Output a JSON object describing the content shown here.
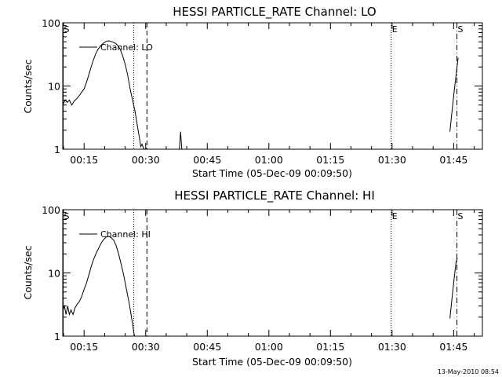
{
  "timestamp": "13-May-2010 08:54",
  "colors": {
    "background": "#ffffff",
    "ink": "#000000"
  },
  "chart_data": [
    {
      "type": "line",
      "title": "HESSI PARTICLE_RATE Channel: LO",
      "xlabel": "Start Time (05-Dec-09 00:09:50)",
      "ylabel": "Counts/sec",
      "yscale": "log",
      "ylim": [
        1,
        100
      ],
      "ytick_values": [
        1,
        10,
        100
      ],
      "ytick_labels": [
        "1",
        "10",
        "100"
      ],
      "xlim_minutes": [
        9.8,
        112
      ],
      "xtick_values": [
        15,
        30,
        45,
        60,
        75,
        90,
        105
      ],
      "xtick_labels": [
        "00:15",
        "00:30",
        "00:45",
        "01:00",
        "01:15",
        "01:30",
        "01:45"
      ],
      "legend": "Channel: LO",
      "markers": [
        {
          "label": "S",
          "minute": 9.9,
          "style": "solid"
        },
        {
          "label": "",
          "minute": 27.1,
          "style": "dotted"
        },
        {
          "label": "",
          "minute": 30.3,
          "style": "dashed"
        },
        {
          "label": "E",
          "minute": 89.8,
          "style": "dotted"
        },
        {
          "label": "S",
          "minute": 105.8,
          "style": "dashdot"
        }
      ],
      "segments": [
        [
          [
            9.8,
            5
          ],
          [
            10.4,
            6
          ],
          [
            10.9,
            5.5
          ],
          [
            11.4,
            6
          ],
          [
            12,
            5
          ],
          [
            12.6,
            5.8
          ],
          [
            13.2,
            6.3
          ],
          [
            13.8,
            7
          ],
          [
            14.4,
            8
          ],
          [
            15,
            9
          ],
          [
            15.5,
            11
          ],
          [
            16,
            14
          ],
          [
            16.6,
            19
          ],
          [
            17.2,
            25
          ],
          [
            17.8,
            32
          ],
          [
            18.4,
            38
          ],
          [
            19,
            43
          ],
          [
            19.6,
            47
          ],
          [
            20.2,
            50
          ],
          [
            21,
            52
          ],
          [
            21.8,
            50
          ],
          [
            22.5,
            48
          ],
          [
            23.2,
            44
          ],
          [
            23.8,
            38
          ],
          [
            24.4,
            30
          ],
          [
            25,
            22
          ],
          [
            25.6,
            15
          ],
          [
            26.2,
            9
          ],
          [
            26.8,
            6
          ],
          [
            27.4,
            4
          ],
          [
            27.9,
            2.5
          ],
          [
            28.4,
            1.6
          ],
          [
            28.8,
            1.1
          ],
          [
            29.1,
            1.2
          ],
          [
            29.6,
            0.9
          ]
        ],
        [
          [
            30,
            1.05
          ],
          [
            30.5,
            0.95
          ]
        ],
        [
          [
            38.2,
            0.95
          ],
          [
            38.5,
            1.9
          ],
          [
            38.8,
            0.95
          ]
        ],
        [
          [
            104.1,
            1.9
          ],
          [
            104.6,
            4
          ],
          [
            105.1,
            8
          ],
          [
            105.6,
            15
          ],
          [
            106.1,
            28
          ]
        ]
      ]
    },
    {
      "type": "line",
      "title": "HESSI PARTICLE_RATE Channel: HI",
      "xlabel": "Start Time (05-Dec-09 00:09:50)",
      "ylabel": "Counts/sec",
      "yscale": "log",
      "ylim": [
        1,
        100
      ],
      "ytick_values": [
        1,
        10,
        100
      ],
      "ytick_labels": [
        "1",
        "10",
        "100"
      ],
      "xlim_minutes": [
        9.8,
        112
      ],
      "xtick_values": [
        15,
        30,
        45,
        60,
        75,
        90,
        105
      ],
      "xtick_labels": [
        "00:15",
        "00:30",
        "00:45",
        "01:00",
        "01:15",
        "01:30",
        "01:45"
      ],
      "legend": "Channel: HI",
      "markers": [
        {
          "label": "S",
          "minute": 9.9,
          "style": "solid"
        },
        {
          "label": "",
          "minute": 27.1,
          "style": "dotted"
        },
        {
          "label": "",
          "minute": 30.3,
          "style": "dashed"
        },
        {
          "label": "E",
          "minute": 89.8,
          "style": "dotted"
        },
        {
          "label": "S",
          "minute": 105.8,
          "style": "dashdot"
        }
      ],
      "segments": [
        [
          [
            9.8,
            2.5
          ],
          [
            10.2,
            3
          ],
          [
            10.6,
            2.2
          ],
          [
            11,
            3
          ],
          [
            11.4,
            2.2
          ],
          [
            11.8,
            2.6
          ],
          [
            12.3,
            2.2
          ],
          [
            12.8,
            2.8
          ],
          [
            13.3,
            3.2
          ],
          [
            13.8,
            3.5
          ],
          [
            14.4,
            4.2
          ],
          [
            15,
            5.5
          ],
          [
            15.6,
            7
          ],
          [
            16.2,
            9.5
          ],
          [
            16.8,
            13
          ],
          [
            17.4,
            17
          ],
          [
            18,
            21
          ],
          [
            18.6,
            25
          ],
          [
            19.2,
            30
          ],
          [
            19.8,
            34
          ],
          [
            20.4,
            37
          ],
          [
            21,
            38
          ],
          [
            21.6,
            36
          ],
          [
            22.2,
            33
          ],
          [
            22.8,
            27
          ],
          [
            23.4,
            20
          ],
          [
            24,
            14
          ],
          [
            24.6,
            9.5
          ],
          [
            25.2,
            6
          ],
          [
            25.8,
            3.8
          ],
          [
            26.3,
            2.5
          ],
          [
            26.7,
            1.7
          ],
          [
            27.1,
            1.15
          ],
          [
            27.3,
            0.95
          ]
        ],
        [
          [
            104.1,
            1.9
          ],
          [
            104.6,
            4
          ],
          [
            105.1,
            8
          ],
          [
            105.6,
            15
          ],
          [
            105.9,
            17
          ]
        ]
      ]
    }
  ]
}
